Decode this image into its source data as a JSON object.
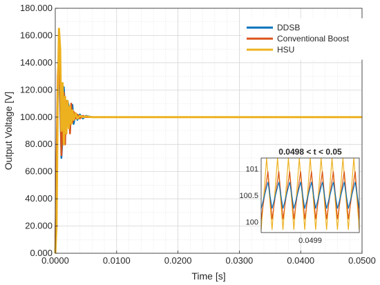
{
  "chart_data": {
    "type": "line",
    "xlabel": "Time [s]",
    "ylabel": "Output Voltage [V]",
    "xlim": [
      0,
      0.05
    ],
    "ylim": [
      0,
      180
    ],
    "xticks": [
      "0.0000",
      "0.0100",
      "0.0200",
      "0.0300",
      "0.0400",
      "0.0500"
    ],
    "yticks": [
      "0.000",
      "20.000",
      "40.000",
      "60.000",
      "80.000",
      "100.000",
      "120.000",
      "140.000",
      "160.000",
      "180.000"
    ],
    "grid": true,
    "legend_position": "top-right",
    "colors": {
      "DDSB": "#0072BD",
      "Conventional Boost": "#D95319",
      "HSU": "#EDB120"
    },
    "series": [
      {
        "name": "DDSB",
        "x": [
          0,
          0.0002,
          0.0004,
          0.0006,
          0.0008,
          0.001,
          0.0012,
          0.0014,
          0.0016,
          0.0018,
          0.002,
          0.0022,
          0.0024,
          0.0026,
          0.0028,
          0.003,
          0.0033,
          0.0036,
          0.004,
          0.0045,
          0.005,
          0.006,
          0.008,
          0.01,
          0.05
        ],
        "y": [
          0,
          60,
          120,
          150,
          110,
          70,
          85,
          122,
          105,
          88,
          112,
          108,
          90,
          104,
          109,
          95,
          103,
          98,
          102,
          99,
          101,
          100,
          100,
          100,
          100
        ]
      },
      {
        "name": "Conventional Boost",
        "x": [
          0,
          0.0002,
          0.0004,
          0.0006,
          0.0008,
          0.001,
          0.0012,
          0.0014,
          0.0016,
          0.0018,
          0.002,
          0.0022,
          0.0024,
          0.0026,
          0.0028,
          0.003,
          0.0033,
          0.0036,
          0.004,
          0.0045,
          0.005,
          0.006,
          0.008,
          0.01,
          0.05
        ],
        "y": [
          0,
          70,
          130,
          148,
          120,
          72,
          95,
          118,
          80,
          112,
          96,
          105,
          88,
          110,
          96,
          104,
          99,
          102,
          99,
          101,
          100,
          100,
          100,
          100,
          100
        ]
      },
      {
        "name": "HSU",
        "x": [
          0,
          0.0002,
          0.0004,
          0.0006,
          0.0008,
          0.001,
          0.0012,
          0.0014,
          0.0016,
          0.0018,
          0.002,
          0.0022,
          0.0024,
          0.0026,
          0.0028,
          0.003,
          0.0033,
          0.0036,
          0.004,
          0.0045,
          0.005,
          0.006,
          0.008,
          0.01,
          0.05
        ],
        "y": [
          0,
          20,
          110,
          165,
          150,
          90,
          125,
          80,
          115,
          88,
          112,
          92,
          108,
          95,
          105,
          98,
          103,
          99,
          101,
          100,
          100.5,
          100,
          100,
          100,
          100
        ]
      }
    ],
    "inset": {
      "title": "0.0498 < t < 0.05",
      "xlim": [
        0.0498,
        0.05
      ],
      "ylim": [
        99.8,
        101.2
      ],
      "xticks": [
        "0.0499"
      ],
      "yticks": [
        "101",
        "100.5",
        "100"
      ],
      "ripple": {
        "periods": 9,
        "HSU": [
          99.85,
          101.2
        ],
        "Conventional Boost": [
          100.05,
          100.95
        ],
        "DDSB": [
          100.25,
          100.75
        ]
      }
    }
  }
}
